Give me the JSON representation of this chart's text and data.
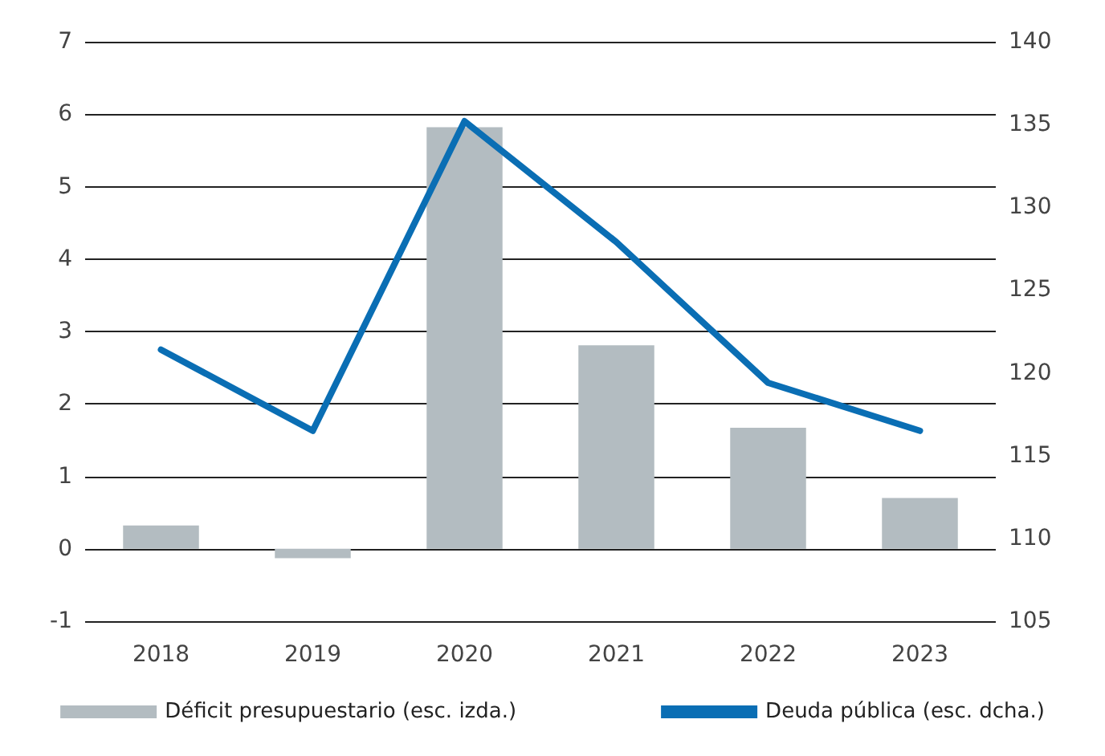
{
  "chart_data": {
    "type": "bar",
    "categories": [
      "2018",
      "2019",
      "2020",
      "2021",
      "2022",
      "2023"
    ],
    "series": [
      {
        "name": "Déficit presupuestario (esc. izda.)",
        "color": "#b3bcc1",
        "values": [
          0.32,
          -0.13,
          5.82,
          2.81,
          1.67,
          0.7
        ]
      },
      {
        "name": "Deuda pública (esc. dcha.)",
        "type": "line",
        "axis": "y2",
        "color": "#0a6eb4",
        "values": [
          121.4,
          116.5,
          135.2,
          127.9,
          119.4,
          116.5
        ]
      }
    ],
    "ylim": [
      -1,
      7
    ],
    "yticks": [
      -1,
      0,
      1,
      2,
      3,
      4,
      5,
      6,
      7
    ],
    "y2lim": [
      105,
      140
    ],
    "y2ticks": [
      105,
      110,
      115,
      120,
      125,
      130,
      135,
      140
    ],
    "grid": "y",
    "legend": "bottom",
    "marker": "none",
    "line_style": "solid"
  }
}
